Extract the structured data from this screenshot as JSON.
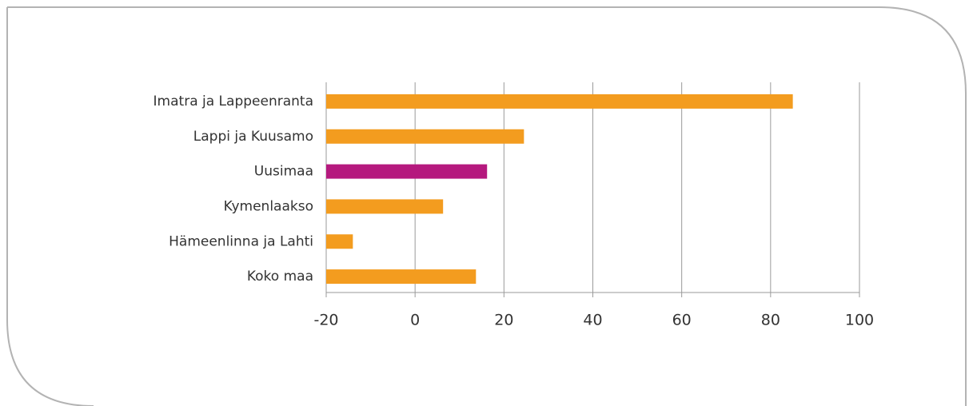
{
  "chart_data": {
    "type": "barh",
    "categories": [
      "Imatra ja Lappeenranta",
      "Lappi ja Kuusamo",
      "Uusimaa",
      "Kymenlaakso",
      "Hämeenlinna ja Lahti",
      "Koko maa"
    ],
    "values": [
      85,
      24.5,
      16.2,
      6.3,
      -14,
      13.7
    ],
    "colors": [
      "#f39c1f",
      "#f39c1f",
      "#b5197e",
      "#f39c1f",
      "#f39c1f",
      "#f39c1f"
    ],
    "xlim": [
      -20,
      100
    ],
    "xticks": [
      -20,
      0,
      20,
      40,
      60,
      80,
      100
    ],
    "grid": true
  }
}
